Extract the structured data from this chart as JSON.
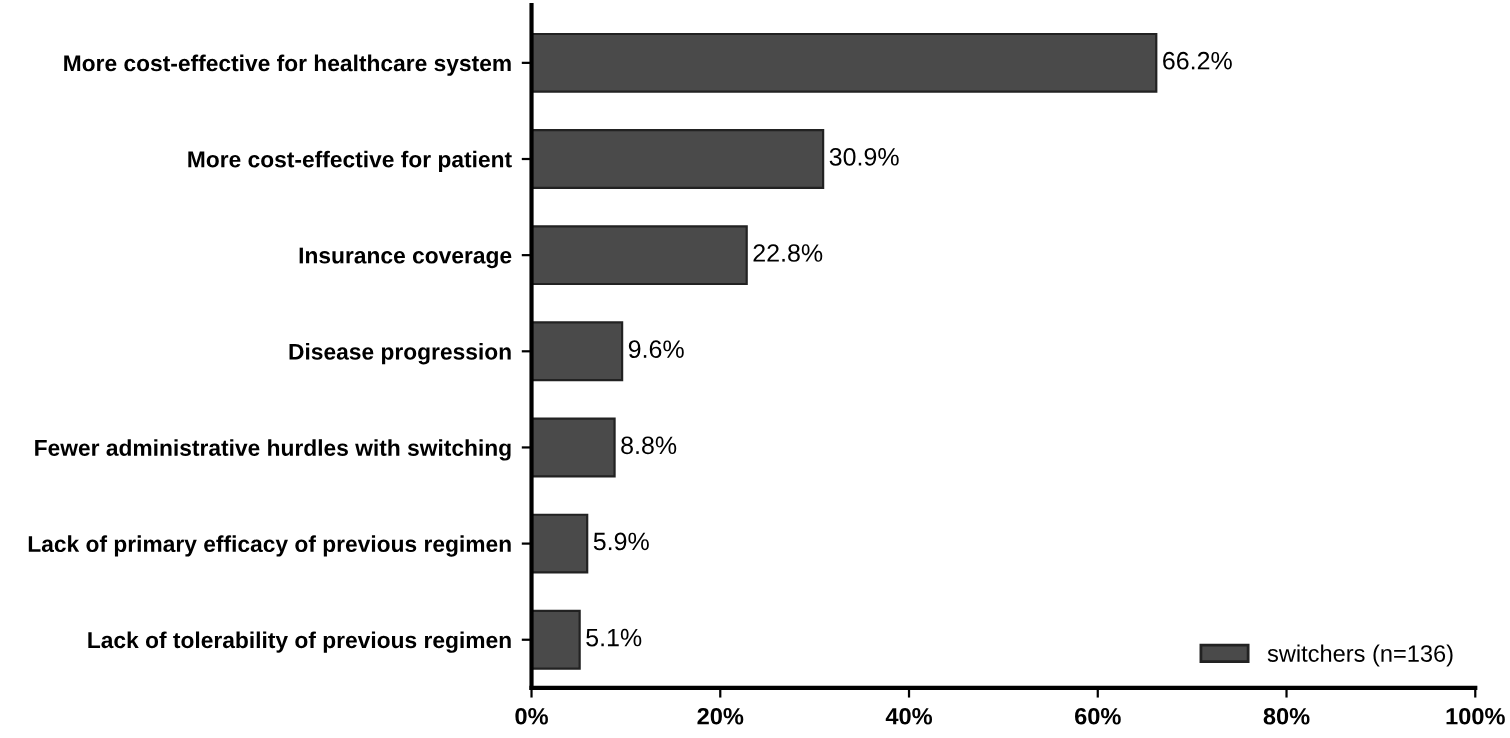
{
  "chart_data": {
    "type": "bar",
    "orientation": "horizontal",
    "categories": [
      "More cost-effective for healthcare system",
      "More cost-effective for patient",
      "Insurance coverage",
      "Disease progression",
      "Fewer administrative hurdles with switching",
      "Lack of primary efficacy of previous regimen",
      "Lack of tolerability of previous regimen"
    ],
    "series": [
      {
        "name": "switchers (n=136)",
        "color": "#4a4a4a",
        "values": [
          66.2,
          30.9,
          22.8,
          9.6,
          8.8,
          5.9,
          5.1
        ]
      }
    ],
    "value_labels": [
      "66.2%",
      "30.9%",
      "22.8%",
      "9.6%",
      "8.8%",
      "5.9%",
      "5.1%"
    ],
    "xlim": [
      0,
      100
    ],
    "xticks": [
      {
        "value": 0,
        "label": "0%"
      },
      {
        "value": 20,
        "label": "20%"
      },
      {
        "value": 40,
        "label": "40%"
      },
      {
        "value": 60,
        "label": "60%"
      },
      {
        "value": 80,
        "label": "80%"
      },
      {
        "value": 100,
        "label": "100%"
      }
    ],
    "legend": "bottom right",
    "grid": false
  }
}
